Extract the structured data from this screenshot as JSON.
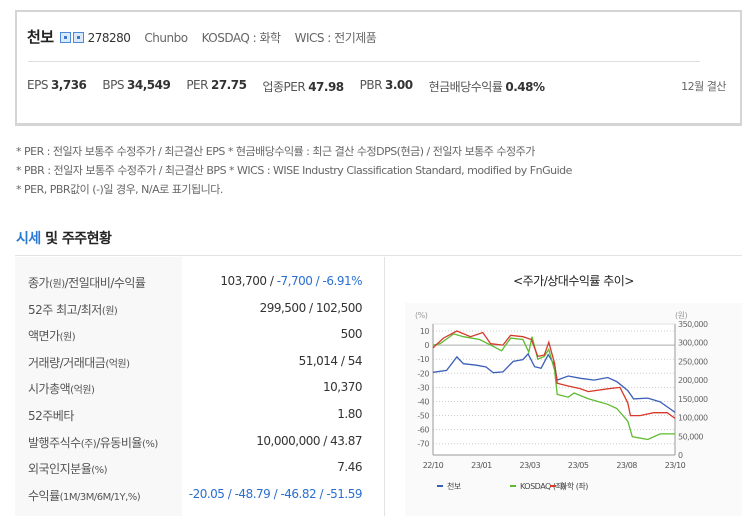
{
  "header": {
    "name": "천보",
    "code": "278280",
    "english_name": "Chunbo",
    "market": "KOSDAQ : 화학",
    "wics": "WICS : 전기제품",
    "icons": [
      "stock-icon",
      "report-icon"
    ],
    "metrics": [
      {
        "label": "EPS",
        "value": "3,736"
      },
      {
        "label": "BPS",
        "value": "34,549"
      },
      {
        "label": "PER",
        "value": "27.75"
      },
      {
        "label": "업종PER",
        "value": "47.98"
      },
      {
        "label": "PBR",
        "value": "3.00"
      },
      {
        "label": "현금배당수익률",
        "value": "0.48%"
      }
    ],
    "fiscal": "12월 결산"
  },
  "notes": [
    "* PER : 전일자 보통주 수정주가 / 최근결산 EPS * 현금배당수익률 : 최근 결산 수정DPS(현금) / 전일자 보통주 수정주가",
    "* PBR : 전일자 보통주 수정주가 / 최근결산 BPS * WICS : WISE Industry Classification Standard, modified by FnGuide",
    "* PER, PBR값이 (-)일 경우, N/A로 표기됩니다."
  ],
  "section": {
    "title_highlight": "시세",
    "title_rest": " 및 주주현황"
  },
  "table": [
    {
      "label": "종가",
      "unit": "(원)",
      "label2": "/전일대비/수익률",
      "unit2": "",
      "value": "103,700 / ",
      "value_blue": "-7,700 / -6.91%"
    },
    {
      "label": "52주 최고/최저",
      "unit": "(원)",
      "label2": "",
      "unit2": "",
      "value": "299,500 / 102,500",
      "value_blue": ""
    },
    {
      "label": "액면가",
      "unit": "(원)",
      "label2": "",
      "unit2": "",
      "value": "500",
      "value_blue": ""
    },
    {
      "label": "거래량/거래대금",
      "unit": "(억원)",
      "label2": "",
      "unit2": "",
      "value": "51,014 / 54",
      "value_blue": ""
    },
    {
      "label": "시가총액",
      "unit": "(억원)",
      "label2": "",
      "unit2": "",
      "value": "10,370",
      "value_blue": ""
    },
    {
      "label": "52주베타",
      "unit": "",
      "label2": "",
      "unit2": "",
      "value": "1.80",
      "value_blue": ""
    },
    {
      "label": "발행주식수",
      "unit": "(주)",
      "label2": "/유동비율",
      "unit2": "(%)",
      "value": "10,000,000 / 43.87",
      "value_blue": ""
    },
    {
      "label": "외국인지분율",
      "unit": "(%)",
      "label2": "",
      "unit2": "",
      "value": "7.46",
      "value_blue": ""
    },
    {
      "label": "수익률",
      "unit": "(1M/3M/6M/1Y,%)",
      "label2": "",
      "unit2": "",
      "value": "",
      "value_blue": "-20.05 / -48.79 / -46.82 / -51.59"
    }
  ],
  "chart_data": {
    "type": "line",
    "title": "<주가/상대수익률 추이>",
    "left_axis_label": "(%)",
    "right_axis_label": "(원)",
    "left_ylim": [
      -78,
      15
    ],
    "right_ylim": [
      0,
      350000
    ],
    "left_ticks": [
      "10",
      "0",
      "-10",
      "-20",
      "-30",
      "-40",
      "-50",
      "-60",
      "-70"
    ],
    "right_ticks": [
      "350,000",
      "300,000",
      "250,000",
      "200,000",
      "150,000",
      "100,000",
      "50,000",
      "0"
    ],
    "x_ticks": [
      "22/10",
      "23/01",
      "23/03",
      "23/05",
      "23/08",
      "23/10"
    ],
    "x_range": [
      "2022-10-04",
      "2023-10-13"
    ],
    "grid": true,
    "legend_position": "bottom",
    "series": [
      {
        "name": "천보",
        "axis": "right",
        "color": "#3a5fb8",
        "points": [
          [
            "2022-10-04",
            221000
          ],
          [
            "2022-10-25",
            226000
          ],
          [
            "2022-11-10",
            262000
          ],
          [
            "2022-11-20",
            244000
          ],
          [
            "2022-12-10",
            240000
          ],
          [
            "2022-12-25",
            235000
          ],
          [
            "2023-01-05",
            220000
          ],
          [
            "2023-01-20",
            222000
          ],
          [
            "2023-02-05",
            250000
          ],
          [
            "2023-02-20",
            255000
          ],
          [
            "2023-02-28",
            270000
          ],
          [
            "2023-03-10",
            236000
          ],
          [
            "2023-03-20",
            232000
          ],
          [
            "2023-03-31",
            268000
          ],
          [
            "2023-04-10",
            240000
          ],
          [
            "2023-04-14",
            200000
          ],
          [
            "2023-05-01",
            211000
          ],
          [
            "2023-05-20",
            205000
          ],
          [
            "2023-06-10",
            200000
          ],
          [
            "2023-07-01",
            207000
          ],
          [
            "2023-07-15",
            196000
          ],
          [
            "2023-08-01",
            172000
          ],
          [
            "2023-08-10",
            150000
          ],
          [
            "2023-09-01",
            152000
          ],
          [
            "2023-09-20",
            142000
          ],
          [
            "2023-10-05",
            124000
          ],
          [
            "2023-10-13",
            114000
          ]
        ]
      },
      {
        "name": "KOSDAQ (좌)",
        "axis": "left",
        "color": "#5dbb2e",
        "points": [
          [
            "2022-10-04",
            0
          ],
          [
            "2022-10-15",
            1
          ],
          [
            "2022-11-05",
            8
          ],
          [
            "2022-11-20",
            6
          ],
          [
            "2022-12-15",
            4
          ],
          [
            "2023-01-01",
            0
          ],
          [
            "2023-01-18",
            -4
          ],
          [
            "2023-02-01",
            5
          ],
          [
            "2023-02-20",
            4
          ],
          [
            "2023-03-01",
            -5
          ],
          [
            "2023-03-06",
            6
          ],
          [
            "2023-03-15",
            -10
          ],
          [
            "2023-03-25",
            -8
          ],
          [
            "2023-04-01",
            -3
          ],
          [
            "2023-04-10",
            -18
          ],
          [
            "2023-04-14",
            -35
          ],
          [
            "2023-05-01",
            -37
          ],
          [
            "2023-05-10",
            -34
          ],
          [
            "2023-06-01",
            -38
          ],
          [
            "2023-07-01",
            -42
          ],
          [
            "2023-07-15",
            -45
          ],
          [
            "2023-08-01",
            -54
          ],
          [
            "2023-08-08",
            -65
          ],
          [
            "2023-09-01",
            -67
          ],
          [
            "2023-09-20",
            -63
          ],
          [
            "2023-10-13",
            -63
          ]
        ]
      },
      {
        "name": "화학 (좌)",
        "axis": "left",
        "color": "#d63a2a",
        "points": [
          [
            "2022-10-04",
            -2
          ],
          [
            "2022-10-20",
            5
          ],
          [
            "2022-11-10",
            10
          ],
          [
            "2022-12-01",
            6
          ],
          [
            "2022-12-20",
            9
          ],
          [
            "2023-01-01",
            1
          ],
          [
            "2023-01-20",
            0
          ],
          [
            "2023-02-01",
            7
          ],
          [
            "2023-02-20",
            6
          ],
          [
            "2023-03-05",
            4
          ],
          [
            "2023-03-15",
            -8
          ],
          [
            "2023-03-25",
            -7
          ],
          [
            "2023-04-01",
            2
          ],
          [
            "2023-04-10",
            -13
          ],
          [
            "2023-04-14",
            -27
          ],
          [
            "2023-05-01",
            -29
          ],
          [
            "2023-05-20",
            -31
          ],
          [
            "2023-06-01",
            -33
          ],
          [
            "2023-07-01",
            -31
          ],
          [
            "2023-07-20",
            -30
          ],
          [
            "2023-08-01",
            -41
          ],
          [
            "2023-08-05",
            -50
          ],
          [
            "2023-08-20",
            -50
          ],
          [
            "2023-09-10",
            -48
          ],
          [
            "2023-10-01",
            -48
          ],
          [
            "2023-10-13",
            -52
          ]
        ]
      }
    ]
  }
}
